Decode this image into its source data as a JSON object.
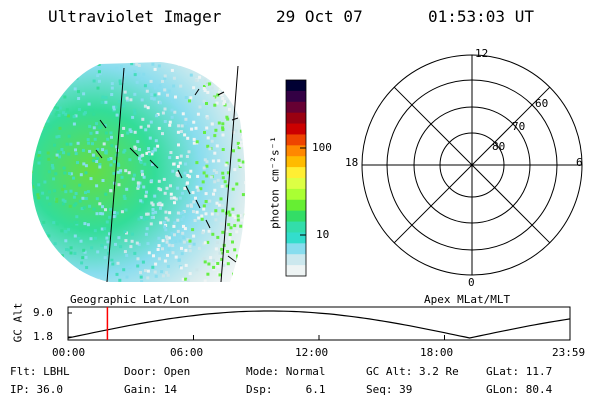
{
  "header": {
    "title": "Ultraviolet Imager",
    "date": "29 Oct 07",
    "time": "01:53:03 UT"
  },
  "colorbar": {
    "unit_label": "photon cm⁻²s⁻¹",
    "ticks": [
      "100",
      "10"
    ],
    "colors": [
      "#000033",
      "#330044",
      "#660033",
      "#990011",
      "#cc0000",
      "#ee4400",
      "#ff8800",
      "#ffbb00",
      "#ffee33",
      "#ddff44",
      "#aaff33",
      "#66ee33",
      "#33dd66",
      "#33ddaa",
      "#33ddcc",
      "#88ddee",
      "#cce8ee",
      "#eef4f4"
    ]
  },
  "polar_plot": {
    "lat_labels": [
      "80",
      "70",
      "60"
    ],
    "mlt_labels": {
      "top": "12",
      "left": "18",
      "right": "6",
      "bottom": "0"
    }
  },
  "timeline": {
    "ylabel": "GC Alt",
    "y_ticks": [
      "9.0",
      "1.8"
    ],
    "left_title": "Geographic Lat/Lon",
    "right_title": "Apex MLat/MLT",
    "x_ticks": [
      "00:00",
      "06:00",
      "12:00",
      "18:00",
      "23:59"
    ],
    "marker_color": "#ff0000",
    "marker_time_fraction": 0.0785
  },
  "info": {
    "row1": [
      "Flt: LBHL",
      "Door: Open",
      "Mode: Normal",
      "GC Alt: 3.2 Re",
      "GLat: 11.7"
    ],
    "row2": [
      "IP: 36.0",
      "Gain: 14",
      "Dsp:     6.1",
      "Seq: 39",
      "GLon: 80.4"
    ]
  }
}
